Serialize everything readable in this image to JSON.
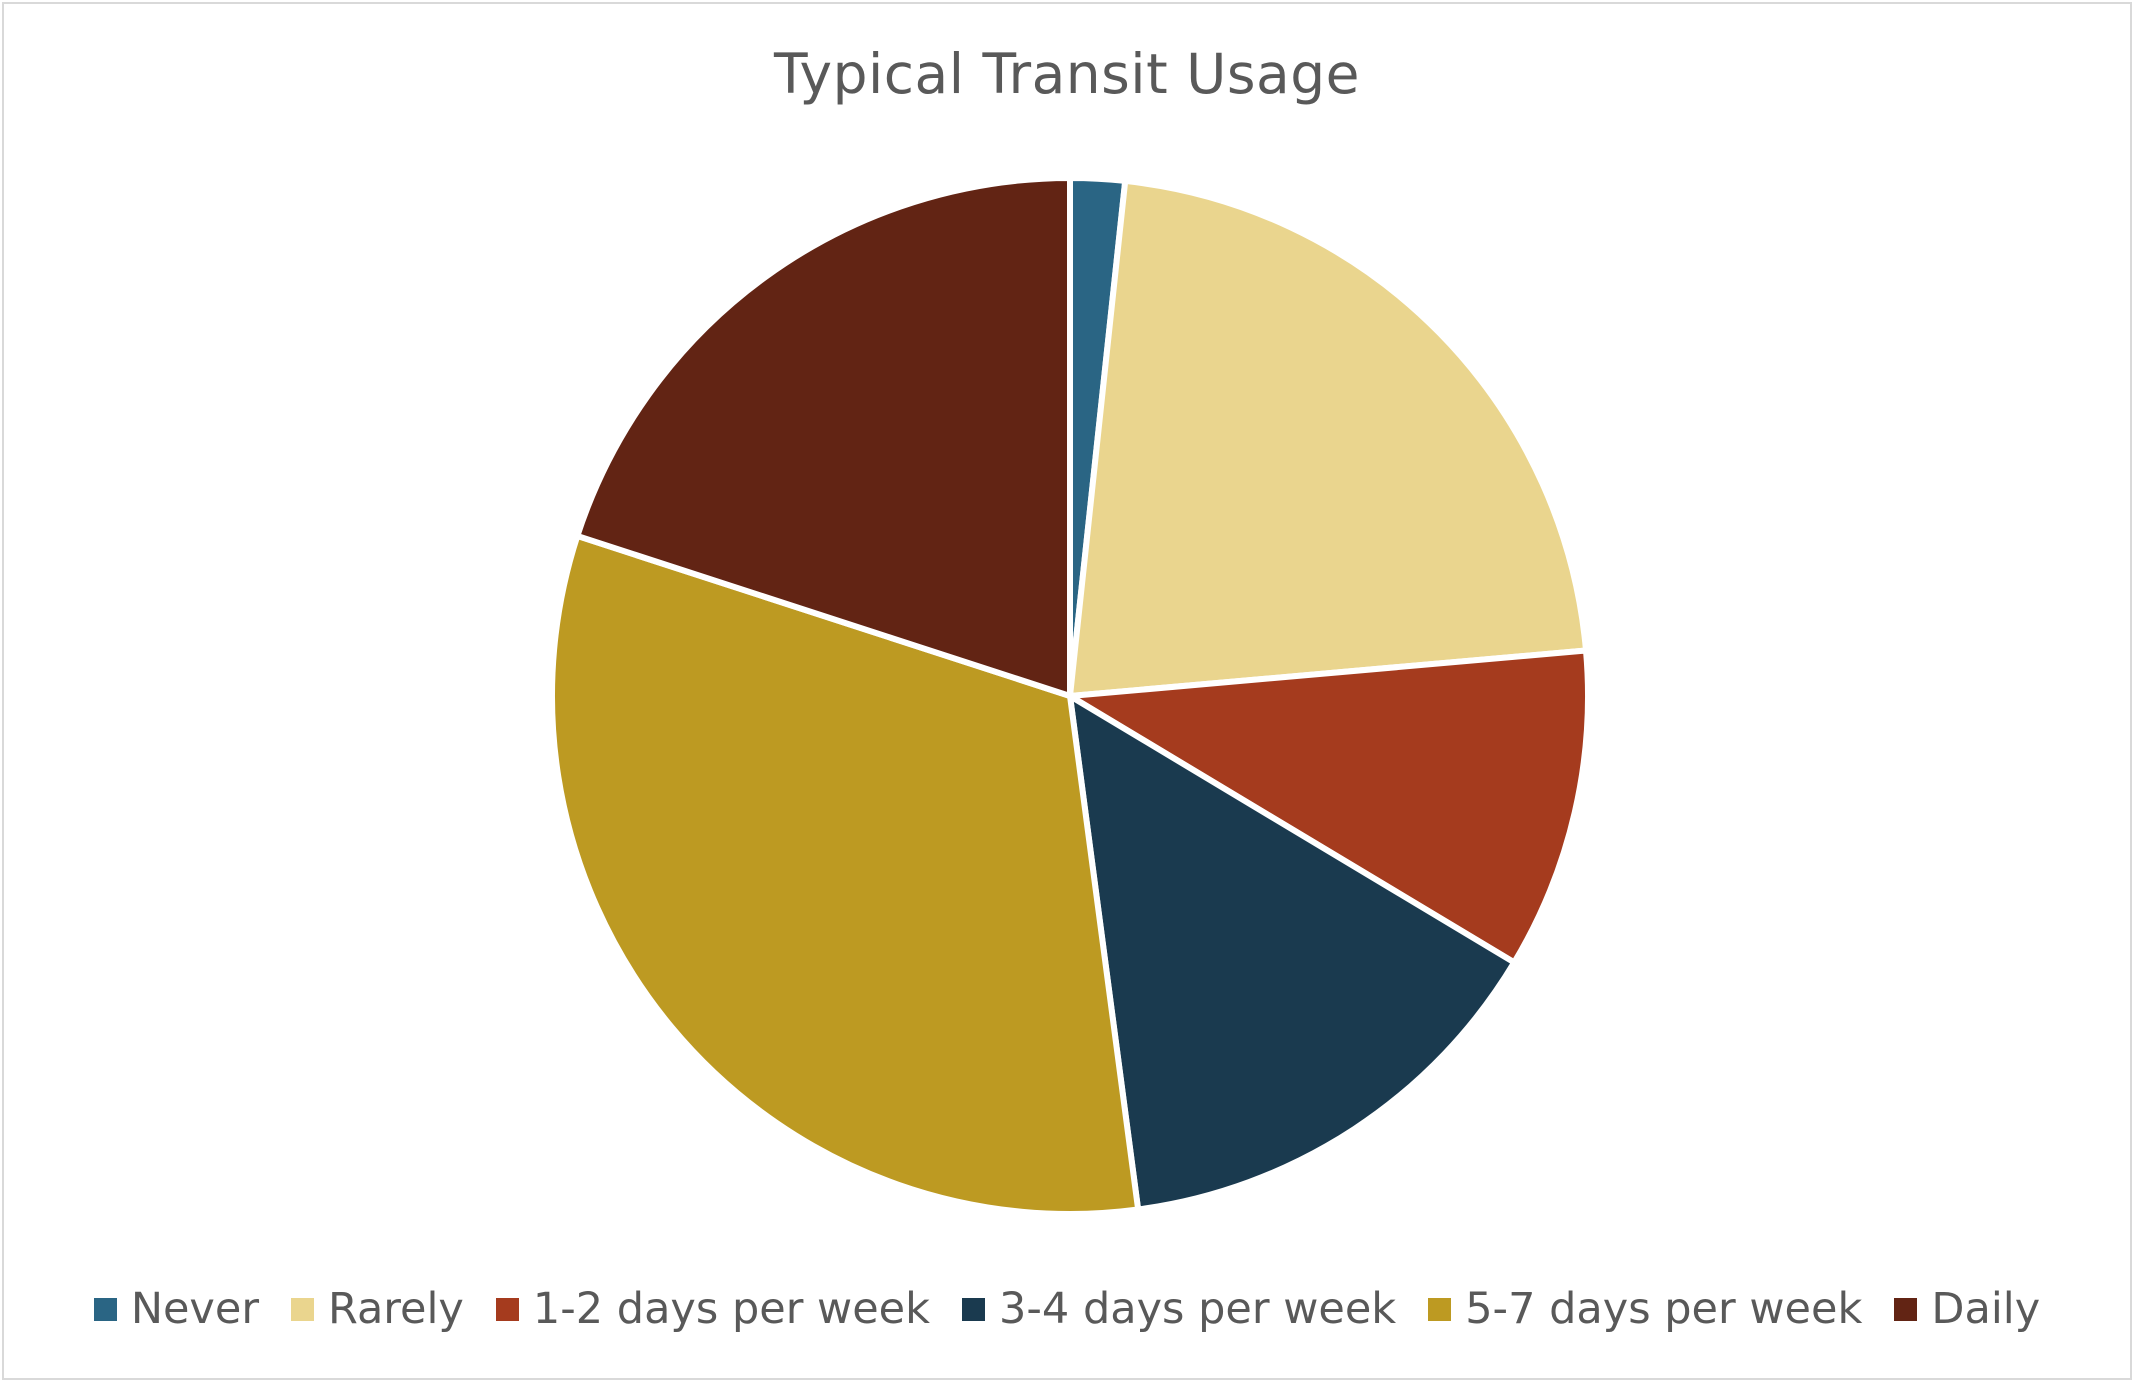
{
  "chart_data": {
    "type": "pie",
    "title": "Typical Transit Usage",
    "categories": [
      "Never",
      "Rarely",
      "1-2 days per week",
      "3-4 days per week",
      "5-7 days per week",
      "Daily"
    ],
    "values": [
      1.7,
      21.9,
      10.0,
      14.3,
      32.1,
      20.0
    ],
    "colors": [
      "#2a6584",
      "#ead58e",
      "#a53b1e",
      "#1a3a4f",
      "#bd9a22",
      "#622414"
    ],
    "start_angle_deg": 0,
    "direction": "clockwise",
    "legend_position": "bottom"
  }
}
